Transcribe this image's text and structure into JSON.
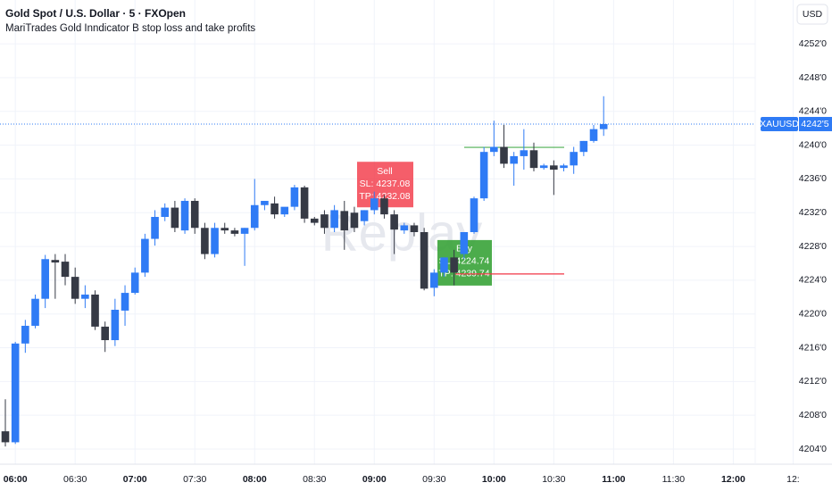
{
  "chart_data": {
    "type": "candlestick",
    "title": "Gold Spot / U.S. Dollar · 5 · FXOpen",
    "subtitle": "MariTrades Gold Inndicator B stop loss and take profits",
    "currency": "USD",
    "watermark": "Replay",
    "symbol": "XAUUSD",
    "last": {
      "value": 4242.5,
      "label": "4242'5"
    },
    "up_color": "#2f7bf5",
    "down_color": "#363a45",
    "ylim": [
      4202.2,
      4257.2
    ],
    "yticks": [
      {
        "value": 4204,
        "label": "4204'0"
      },
      {
        "value": 4208,
        "label": "4208'0"
      },
      {
        "value": 4212,
        "label": "4212'0"
      },
      {
        "value": 4216,
        "label": "4216'0"
      },
      {
        "value": 4220,
        "label": "4220'0"
      },
      {
        "value": 4224,
        "label": "4224'0"
      },
      {
        "value": 4228,
        "label": "4228'0"
      },
      {
        "value": 4232,
        "label": "4232'0"
      },
      {
        "value": 4236,
        "label": "4236'0"
      },
      {
        "value": 4240,
        "label": "4240'0"
      },
      {
        "value": 4244,
        "label": "4244'0"
      },
      {
        "value": 4248,
        "label": "4248'0"
      },
      {
        "value": 4252,
        "label": "4252'0"
      }
    ],
    "grid": true,
    "categories": [
      null,
      "06:00",
      null,
      null,
      null,
      null,
      null,
      "06:30",
      null,
      null,
      null,
      null,
      null,
      "07:00",
      null,
      null,
      null,
      null,
      null,
      "07:30",
      null,
      null,
      null,
      null,
      null,
      "08:00",
      null,
      null,
      null,
      null,
      null,
      "08:30",
      null,
      null,
      null,
      null,
      null,
      "09:00",
      null,
      null,
      null,
      null,
      null,
      "09:30",
      null,
      null,
      null,
      null,
      null,
      "10:00",
      null,
      null,
      null,
      null,
      null,
      "10:30",
      null,
      null,
      null,
      null,
      null,
      "11:00",
      null,
      null,
      null,
      null,
      null,
      "11:30",
      null,
      null,
      null,
      null,
      null,
      "12:00",
      null,
      null,
      null,
      null,
      null,
      "12:"
    ],
    "open": [
      4206.1,
      4204.8,
      4216.5,
      4218.6,
      4221.8,
      4226.4,
      4226.2,
      4224.4,
      4221.8,
      4222.3,
      4218.5,
      4216.9,
      4220.4,
      4222.5,
      4224.9,
      4228.9,
      4231.5,
      4232.6,
      4229.9,
      4233.4,
      4230.2,
      4227.1,
      4230.2,
      4229.9,
      4229.5,
      4230.2,
      4232.9,
      4233.1,
      4231.8,
      4232.7,
      4235.0,
      4231.3,
      4231.8,
      4230.2,
      4232.2,
      4232.0,
      4231.0,
      4232.3,
      4233.7,
      4231.8,
      4229.9,
      4230.5,
      4229.7,
      4223.1,
      4224.9,
      4226.7,
      4227.1,
      4229.7,
      4233.7,
      4239.2,
      4239.8,
      4237.8,
      4238.7,
      4239.4,
      4237.3,
      4237.6,
      4237.3,
      4237.6,
      4239.2,
      4240.5,
      4241.9,
      null,
      null,
      null,
      null,
      null,
      null,
      null,
      null,
      null,
      null,
      null,
      null,
      null,
      null,
      null,
      null,
      null,
      null,
      null
    ],
    "high": [
      4209.9,
      4216.7,
      4219.3,
      4222.3,
      4227.0,
      4227.1,
      4227.1,
      4225.5,
      4223.4,
      4222.8,
      4219.1,
      4221.8,
      4223.4,
      4225.5,
      4229.5,
      4232.3,
      4233.1,
      4233.4,
      4233.7,
      4233.7,
      4230.8,
      4230.8,
      4230.8,
      4230.2,
      4230.2,
      4236.0,
      4233.4,
      4233.9,
      4232.3,
      4235.3,
      4235.2,
      4231.5,
      4232.3,
      4232.9,
      4233.4,
      4232.7,
      4232.3,
      4234.5,
      4234.1,
      4232.3,
      4230.8,
      4230.8,
      4230.2,
      4225.3,
      4226.7,
      4227.6,
      4229.7,
      4233.9,
      4239.8,
      4242.9,
      4242.4,
      4239.2,
      4241.9,
      4240.3,
      4237.8,
      4238.2,
      4237.8,
      4239.8,
      4240.5,
      4242.4,
      4245.8,
      null,
      null,
      null,
      null,
      null,
      null,
      null,
      null,
      null,
      null,
      null,
      null,
      null,
      null,
      null,
      null,
      null,
      null,
      null
    ],
    "low": [
      4204.3,
      4204.6,
      4215.4,
      4218.3,
      4220.7,
      4221.8,
      4223.4,
      4221.2,
      4220.7,
      4218.1,
      4215.5,
      4216.2,
      4218.6,
      4222.3,
      4224.4,
      4228.1,
      4231.0,
      4229.7,
      4229.5,
      4229.5,
      4226.5,
      4226.7,
      4229.5,
      4229.2,
      4225.7,
      4229.9,
      4232.3,
      4231.3,
      4231.5,
      4232.3,
      4230.8,
      4230.5,
      4229.5,
      4229.7,
      4227.6,
      4229.7,
      4230.5,
      4231.8,
      4231.3,
      4227.1,
      4229.5,
      4229.2,
      4222.8,
      4222.1,
      4224.4,
      4223.4,
      4226.5,
      4229.5,
      4233.4,
      4238.7,
      4237.3,
      4235.2,
      4237.1,
      4236.9,
      4237.1,
      4234.1,
      4236.9,
      4236.6,
      4238.7,
      4240.3,
      4241.1,
      null,
      null,
      null,
      null,
      null,
      null,
      null,
      null,
      null,
      null,
      null,
      null,
      null,
      null,
      null,
      null,
      null,
      null,
      null
    ],
    "close": [
      4204.8,
      4216.5,
      4218.6,
      4221.8,
      4226.5,
      4226.1,
      4224.4,
      4221.8,
      4222.3,
      4218.5,
      4216.9,
      4220.5,
      4222.5,
      4224.9,
      4228.9,
      4231.5,
      4232.6,
      4230.2,
      4233.4,
      4230.2,
      4227.1,
      4230.2,
      4229.9,
      4229.5,
      4230.2,
      4232.9,
      4233.4,
      4231.8,
      4232.7,
      4235.0,
      4231.3,
      4230.8,
      4230.2,
      4232.3,
      4229.9,
      4230.2,
      4232.3,
      4233.7,
      4231.8,
      4230.0,
      4230.5,
      4229.7,
      4223.0,
      4224.9,
      4226.7,
      4224.9,
      4229.7,
      4233.7,
      4239.2,
      4239.8,
      4237.8,
      4238.7,
      4239.4,
      4237.3,
      4237.6,
      4237.1,
      4237.6,
      4239.2,
      4240.5,
      4241.9,
      4242.5,
      null,
      null,
      null,
      null,
      null,
      null,
      null,
      null,
      null,
      null,
      null,
      null,
      null,
      null,
      null,
      null,
      null,
      null,
      null
    ],
    "sell_signal": {
      "label": "Sell",
      "sl": 4237.08,
      "sl_label": "SL: 4237.08",
      "tp": 4232.08,
      "tp_label": "TP: 4232.08"
    },
    "buy_signal": {
      "label": "Buy",
      "sl": 4224.74,
      "sl_label": "SL: 4224.74",
      "tp": 4239.74,
      "tp_label": "TP: 4239.74"
    }
  }
}
